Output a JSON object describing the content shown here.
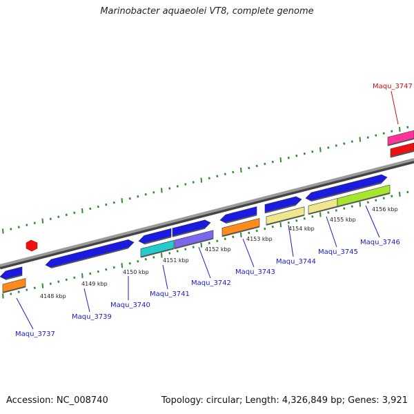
{
  "title": "Marinobacter aquaeolei VT8, complete genome",
  "footer": {
    "accession": "Accession: NC_008740",
    "topology": "Topology: circular; Length: 4,326,849 bp; Genes: 3,921"
  },
  "scale_labels": [
    "4148 kbp",
    "4149 kbp",
    "4150 kbp",
    "4151 kbp",
    "4152 kbp",
    "4153 kbp",
    "4154 kbp",
    "4155 kbp",
    "4156 kbp"
  ],
  "gene_labels": [
    "Maqu_3737",
    "Maqu_3739",
    "Maqu_3740",
    "Maqu_3741",
    "Maqu_3742",
    "Maqu_3743",
    "Maqu_3744",
    "Maqu_3745",
    "Maqu_3746",
    "Maqu_3747"
  ],
  "colors": {
    "backbone": "#8a8a8a",
    "tick": "#2e8b2e",
    "gene_label": "#1a1acc",
    "highlight_label": "#cc1111",
    "blue_gene": "#1a1ae0",
    "orange_gene": "#ff8c1a",
    "cyan_gene": "#22cccc",
    "purple_gene": "#7b68ee",
    "khaki_gene": "#f0e68c",
    "green_gene": "#a6e62e",
    "pink_gene": "#ff3399",
    "red_gene": "#ee1111"
  }
}
